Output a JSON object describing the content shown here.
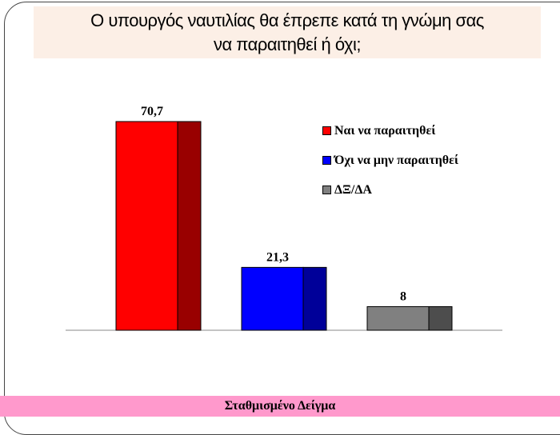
{
  "title_line1": "Ο υπουργός ναυτιλίας θα έπρεπε κατά τη γνώμη σας",
  "title_line2": "να παραιτηθεί ή όχι;",
  "footer": "Σταθμισμένο Δείγμα",
  "chart_data": {
    "type": "bar",
    "title": "Ο υπουργός ναυτιλίας θα έπρεπε κατά τη γνώμη σας να παραιτηθεί ή όχι;",
    "categories": [
      "Ναι να παραιτηθεί",
      "Όχι να μην παραιτηθεί",
      "ΔΞ/ΔΑ"
    ],
    "values": [
      70.7,
      21.3,
      8
    ],
    "labels": [
      "70,7",
      "21,3",
      "8"
    ],
    "colors": [
      "#ff0000",
      "#0000ff",
      "#808080"
    ],
    "side_colors": [
      "#990000",
      "#000099",
      "#4d4d4d"
    ],
    "ylim": [
      0,
      75
    ],
    "legend_position": "right",
    "grid": false
  }
}
